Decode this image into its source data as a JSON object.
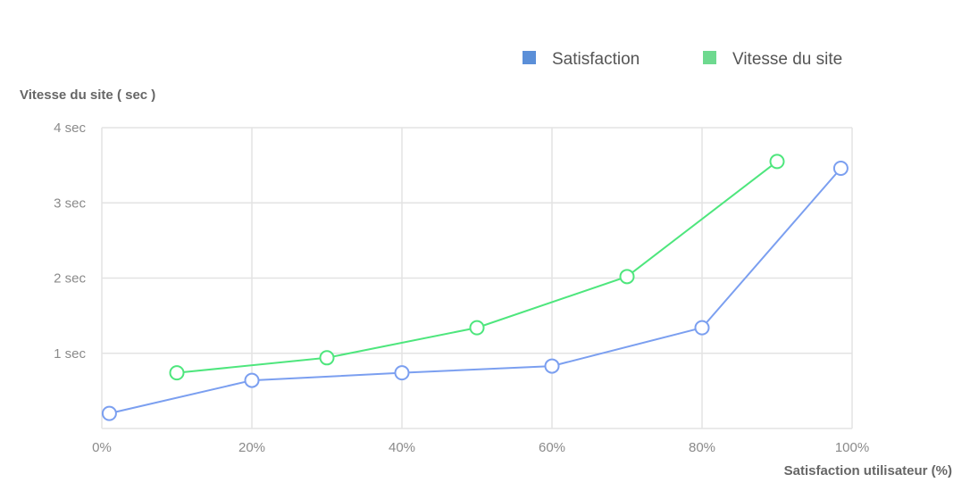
{
  "chart_data": {
    "type": "line",
    "title": "",
    "xlabel": "Satisfaction utilisateur (%)",
    "ylabel": "Vitesse du site ( sec )",
    "xlim": [
      0,
      100
    ],
    "ylim": [
      0,
      4
    ],
    "x_ticks": [
      "0%",
      "20%",
      "40%",
      "60%",
      "80%",
      "100%"
    ],
    "y_ticks": [
      "1 sec",
      "2 sec",
      "3 sec",
      "4 sec"
    ],
    "grid": true,
    "legend_position": "top-right",
    "series": [
      {
        "name": "Satisfaction",
        "color": "#7b9ff0",
        "legend_color": "#5b8fd8",
        "x": [
          1,
          20,
          40,
          60,
          80,
          98.5
        ],
        "y": [
          0.2,
          0.64,
          0.74,
          0.83,
          1.34,
          3.46
        ]
      },
      {
        "name": "Vitesse du site",
        "color": "#4ee67d",
        "legend_color": "#6ed98f",
        "x": [
          10,
          30,
          50,
          70,
          90
        ],
        "y": [
          0.74,
          0.94,
          1.34,
          2.02,
          3.55
        ]
      }
    ]
  }
}
